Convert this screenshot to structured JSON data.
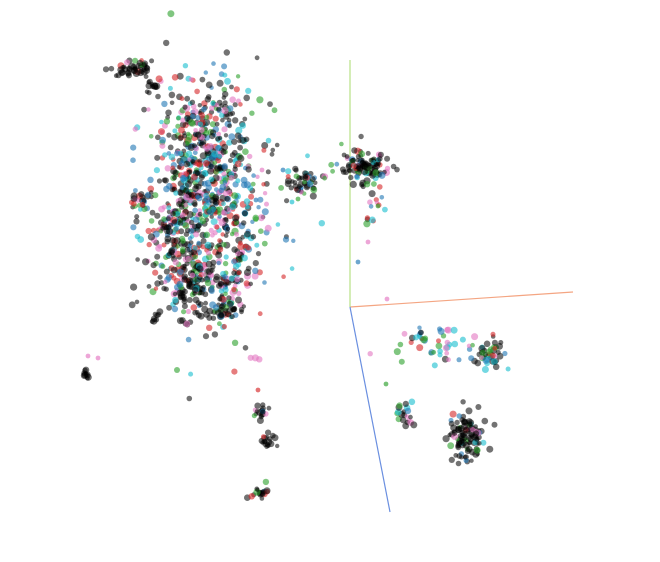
{
  "scene": {
    "type": "3d-scatter-projection",
    "background": "#ffffff",
    "point_colors": [
      "#1f77b4",
      "#17becf",
      "#e377c2",
      "#2ca02c",
      "#d62728",
      "#000000"
    ],
    "axis_colors": {
      "x": "#f4a582",
      "y": "#b8e186",
      "z": "#6a8fe0"
    }
  }
}
